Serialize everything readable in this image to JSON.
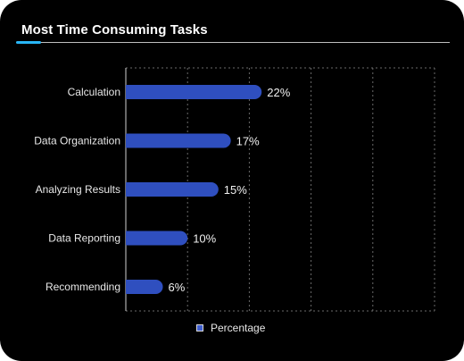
{
  "title": "Most Time Consuming Tasks",
  "colors": {
    "bar": "#2f4fbf",
    "accent": "#29b6f6",
    "grid": "#6a6a6a",
    "background": "#000000"
  },
  "chart_data": {
    "type": "bar",
    "orientation": "horizontal",
    "categories": [
      "Calculation",
      "Data Organization",
      "Analyzing Results",
      "Data Reporting",
      "Recommending"
    ],
    "series": [
      {
        "name": "Percentage",
        "values": [
          22,
          17,
          15,
          10,
          6
        ],
        "labels": [
          "22%",
          "17%",
          "15%",
          "10%",
          "6%"
        ]
      }
    ],
    "xlim": [
      0,
      50
    ],
    "grid": true,
    "legend": "bottom"
  }
}
